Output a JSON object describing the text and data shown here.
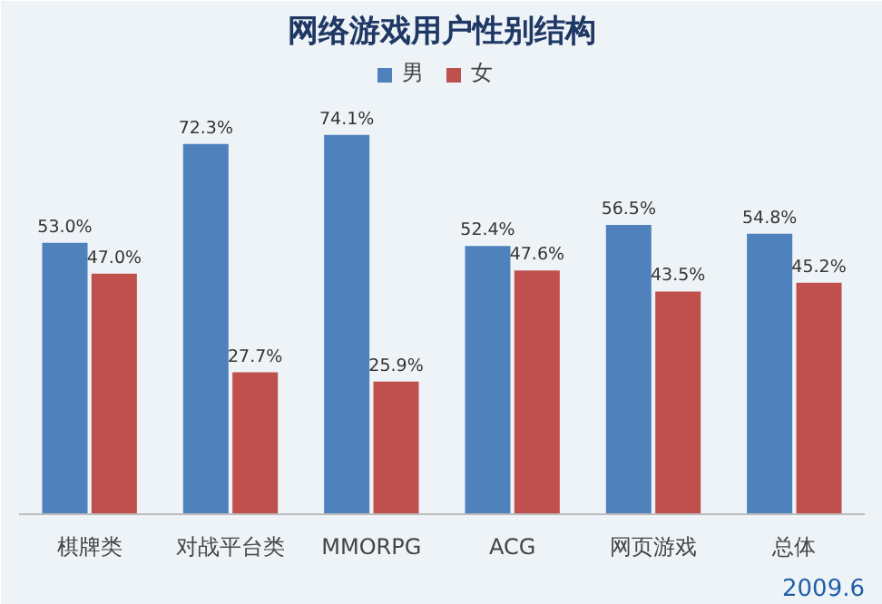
{
  "chart_data": {
    "type": "bar",
    "title": "网络游戏用户性别结构",
    "categories": [
      "棋牌类",
      "对战平台类",
      "MMORPG",
      "ACG",
      "网页游戏",
      "总体"
    ],
    "series": [
      {
        "name": "男",
        "color": "#4f81bd",
        "values": [
          53.0,
          72.3,
          74.1,
          52.4,
          56.5,
          54.8
        ],
        "value_labels": [
          "53.0%",
          "72.3%",
          "74.1%",
          "52.4%",
          "56.5%",
          "54.8%"
        ]
      },
      {
        "name": "女",
        "color": "#c0504d",
        "values": [
          47.0,
          27.7,
          25.9,
          47.6,
          43.5,
          45.2
        ],
        "value_labels": [
          "47.0%",
          "27.7%",
          "25.9%",
          "47.6%",
          "43.5%",
          "45.2%"
        ]
      }
    ],
    "legend": "top",
    "annotations": [
      "2009.6"
    ]
  }
}
